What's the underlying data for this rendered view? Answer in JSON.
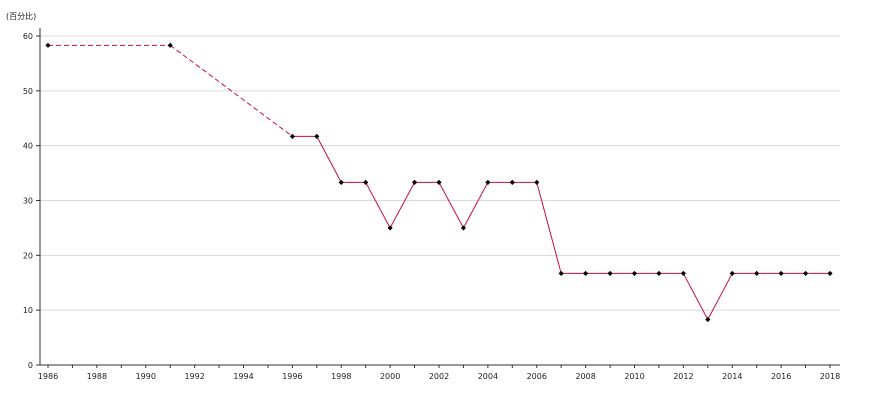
{
  "chart_data": {
    "type": "line",
    "unit_label": "(百分比)",
    "x": [
      1986,
      1991,
      1996,
      1997,
      1998,
      1999,
      2000,
      2001,
      2002,
      2003,
      2004,
      2005,
      2006,
      2007,
      2008,
      2009,
      2010,
      2011,
      2012,
      2013,
      2014,
      2015,
      2016,
      2017,
      2018
    ],
    "series": [
      {
        "values": [
          58.3,
          58.3,
          41.7,
          41.7,
          33.3,
          33.3,
          25.0,
          33.3,
          33.3,
          25.0,
          33.3,
          33.3,
          33.3,
          16.7,
          16.7,
          16.7,
          16.7,
          16.7,
          16.7,
          8.3,
          16.7,
          16.7,
          16.7,
          16.7,
          16.7
        ],
        "color": "#c8103c",
        "marker_color": "#000000",
        "dashed_until_x": 1996
      }
    ],
    "xlim": [
      1986,
      2018
    ],
    "ylim": [
      0,
      60
    ],
    "x_ticks": [
      "1986",
      "1988",
      "1990",
      "1992",
      "1994",
      "1996",
      "1998",
      "2000",
      "2002",
      "2004",
      "2006",
      "2008",
      "2010",
      "2012",
      "2014",
      "2016",
      "2018"
    ],
    "y_ticks": [
      "0",
      "10",
      "20",
      "30",
      "40",
      "50",
      "60"
    ],
    "grid": true,
    "grid_color": "#d9d9d9"
  }
}
